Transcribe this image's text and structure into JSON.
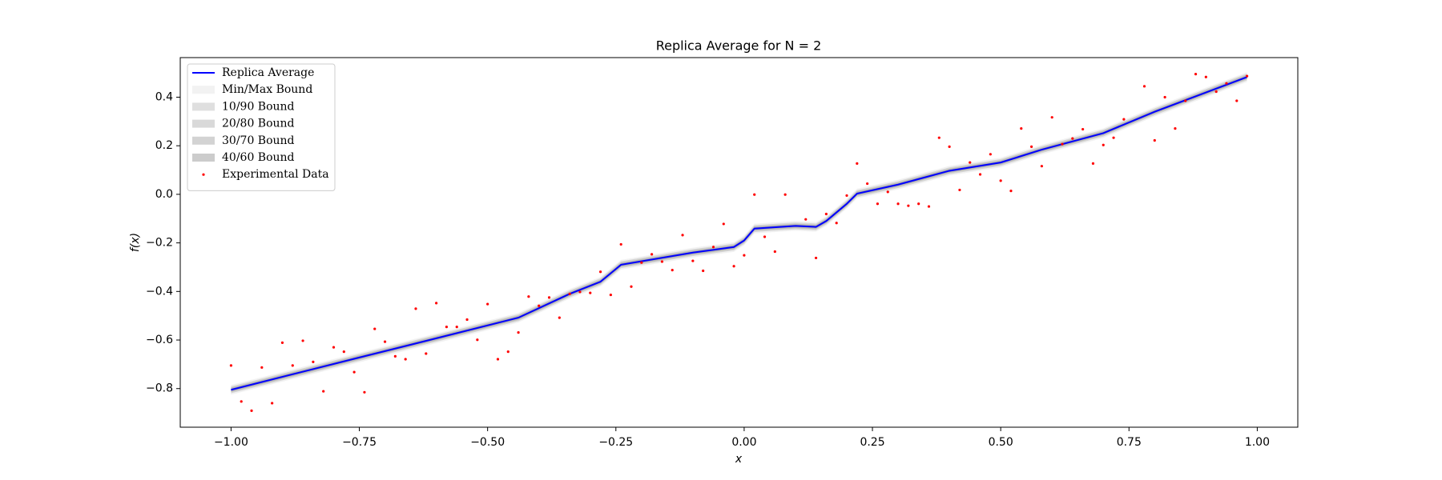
{
  "chart_data": {
    "type": "line",
    "title": "Replica Average for N = 2",
    "x_label": "x",
    "y_label": "f(x)",
    "xlim": [
      -1.099,
      1.079
    ],
    "ylim": [
      -0.959,
      0.563
    ],
    "xticks": [
      {
        "value": -1,
        "label": "−1.00"
      },
      {
        "value": -0.75,
        "label": "−0.75"
      },
      {
        "value": -0.5,
        "label": "−0.50"
      },
      {
        "value": -0.25,
        "label": "−0.25"
      },
      {
        "value": 0,
        "label": "0.00"
      },
      {
        "value": 0.25,
        "label": "0.25"
      },
      {
        "value": 0.5,
        "label": "0.50"
      },
      {
        "value": 0.75,
        "label": "0.75"
      },
      {
        "value": 1,
        "label": "1.00"
      }
    ],
    "yticks": [
      {
        "value": -0.8,
        "label": "−0.8"
      },
      {
        "value": -0.6,
        "label": "−0.6"
      },
      {
        "value": -0.4,
        "label": "−0.4"
      },
      {
        "value": -0.2,
        "label": "−0.2"
      },
      {
        "value": 0,
        "label": "0.0"
      },
      0.2,
      0.4
    ],
    "legend": "upper left",
    "series": [
      {
        "name": "Replica Average",
        "type": "line",
        "color": "#0000ff",
        "x": [
          -1,
          -0.88,
          -0.75,
          -0.6,
          -0.44,
          -0.34,
          -0.28,
          -0.24,
          -0.1,
          -0.02,
          0,
          0.02,
          0.1,
          0.14,
          0.16,
          0.2,
          0.22,
          0.3,
          0.4,
          0.5,
          0.58,
          0.7,
          0.8,
          0.98
        ],
        "values": [
          -0.805,
          -0.741,
          -0.672,
          -0.593,
          -0.508,
          -0.41,
          -0.36,
          -0.29,
          -0.24,
          -0.217,
          -0.19,
          -0.141,
          -0.13,
          -0.134,
          -0.11,
          -0.039,
          0.003,
          0.04,
          0.097,
          0.131,
          0.184,
          0.252,
          0.34,
          0.483
        ]
      },
      {
        "name": "Min/Max Bound",
        "type": "band",
        "color": "#808080",
        "opacity": 0.1,
        "x": [
          -1,
          -0.88,
          -0.75,
          -0.6,
          -0.44,
          -0.34,
          -0.28,
          -0.24,
          -0.1,
          -0.02,
          0,
          0.02,
          0.1,
          0.14,
          0.16,
          0.2,
          0.22,
          0.3,
          0.4,
          0.5,
          0.58,
          0.7,
          0.8,
          0.98
        ],
        "lower": [
          -0.825,
          -0.761,
          -0.692,
          -0.613,
          -0.528,
          -0.43,
          -0.38,
          -0.31,
          -0.26,
          -0.237,
          -0.21,
          -0.161,
          -0.15,
          -0.154,
          -0.13,
          -0.059,
          -0.017,
          0.02,
          0.077,
          0.111,
          0.164,
          0.232,
          0.32,
          0.463
        ],
        "upper": [
          -0.785,
          -0.721,
          -0.652,
          -0.573,
          -0.488,
          -0.39,
          -0.34,
          -0.27,
          -0.22,
          -0.197,
          -0.17,
          -0.121,
          -0.11,
          -0.114,
          -0.09,
          -0.019,
          0.023,
          0.06,
          0.117,
          0.151,
          0.204,
          0.272,
          0.36,
          0.503
        ]
      },
      {
        "name": "10/90 Bound",
        "type": "band",
        "color": "#808080",
        "opacity": 0.25,
        "x": [
          -1,
          -0.88,
          -0.75,
          -0.6,
          -0.44,
          -0.34,
          -0.28,
          -0.24,
          -0.1,
          -0.02,
          0,
          0.02,
          0.1,
          0.14,
          0.16,
          0.2,
          0.22,
          0.3,
          0.4,
          0.5,
          0.58,
          0.7,
          0.8,
          0.98
        ],
        "lower": [
          -0.819,
          -0.755,
          -0.686,
          -0.607,
          -0.522,
          -0.424,
          -0.374,
          -0.304,
          -0.254,
          -0.231,
          -0.204,
          -0.155,
          -0.144,
          -0.148,
          -0.124,
          -0.053,
          -0.011,
          0.026,
          0.083,
          0.117,
          0.17,
          0.238,
          0.326,
          0.469
        ],
        "upper": [
          -0.791,
          -0.727,
          -0.658,
          -0.579,
          -0.494,
          -0.396,
          -0.346,
          -0.276,
          -0.226,
          -0.203,
          -0.176,
          -0.127,
          -0.116,
          -0.12,
          -0.096,
          -0.025,
          0.017,
          0.054,
          0.111,
          0.145,
          0.198,
          0.266,
          0.354,
          0.497
        ]
      },
      {
        "name": "20/80 Bound",
        "type": "band",
        "color": "#808080",
        "opacity": 0.3,
        "x": [
          -1,
          -0.88,
          -0.75,
          -0.6,
          -0.44,
          -0.34,
          -0.28,
          -0.24,
          -0.1,
          -0.02,
          0,
          0.02,
          0.1,
          0.14,
          0.16,
          0.2,
          0.22,
          0.3,
          0.4,
          0.5,
          0.58,
          0.7,
          0.8,
          0.98
        ],
        "lower": [
          -0.814,
          -0.75,
          -0.681,
          -0.602,
          -0.517,
          -0.419,
          -0.369,
          -0.299,
          -0.249,
          -0.226,
          -0.199,
          -0.15,
          -0.139,
          -0.143,
          -0.119,
          -0.048,
          -0.006,
          0.031,
          0.088,
          0.122,
          0.175,
          0.243,
          0.331,
          0.474
        ],
        "upper": [
          -0.796,
          -0.732,
          -0.663,
          -0.584,
          -0.499,
          -0.401,
          -0.351,
          -0.281,
          -0.231,
          -0.208,
          -0.181,
          -0.132,
          -0.121,
          -0.125,
          -0.101,
          -0.03,
          0.012,
          0.049,
          0.106,
          0.14,
          0.193,
          0.261,
          0.349,
          0.492
        ]
      },
      {
        "name": "30/70 Bound",
        "type": "band",
        "color": "#808080",
        "opacity": 0.35,
        "x": [
          -1,
          -0.88,
          -0.75,
          -0.6,
          -0.44,
          -0.34,
          -0.28,
          -0.24,
          -0.1,
          -0.02,
          0,
          0.02,
          0.1,
          0.14,
          0.16,
          0.2,
          0.22,
          0.3,
          0.4,
          0.5,
          0.58,
          0.7,
          0.8,
          0.98
        ],
        "lower": [
          -0.81,
          -0.746,
          -0.677,
          -0.598,
          -0.513,
          -0.415,
          -0.365,
          -0.295,
          -0.245,
          -0.222,
          -0.195,
          -0.146,
          -0.135,
          -0.139,
          -0.115,
          -0.044,
          -0.002,
          0.035,
          0.092,
          0.126,
          0.179,
          0.247,
          0.335,
          0.478
        ],
        "upper": [
          -0.8,
          -0.736,
          -0.667,
          -0.588,
          -0.503,
          -0.405,
          -0.355,
          -0.285,
          -0.235,
          -0.212,
          -0.185,
          -0.136,
          -0.125,
          -0.129,
          -0.105,
          -0.034,
          0.008,
          0.045,
          0.102,
          0.136,
          0.189,
          0.257,
          0.345,
          0.488
        ]
      },
      {
        "name": "40/60 Bound",
        "type": "band",
        "color": "#808080",
        "opacity": 0.4,
        "x": [
          -1,
          -0.88,
          -0.75,
          -0.6,
          -0.44,
          -0.34,
          -0.28,
          -0.24,
          -0.1,
          -0.02,
          0,
          0.02,
          0.1,
          0.14,
          0.16,
          0.2,
          0.22,
          0.3,
          0.4,
          0.5,
          0.58,
          0.7,
          0.8,
          0.98
        ],
        "lower": [
          -0.807,
          -0.743,
          -0.674,
          -0.595,
          -0.51,
          -0.412,
          -0.362,
          -0.292,
          -0.242,
          -0.219,
          -0.192,
          -0.143,
          -0.132,
          -0.136,
          -0.112,
          -0.041,
          0.001,
          0.038,
          0.095,
          0.129,
          0.182,
          0.25,
          0.338,
          0.481
        ],
        "upper": [
          -0.803,
          -0.739,
          -0.67,
          -0.591,
          -0.506,
          -0.408,
          -0.358,
          -0.288,
          -0.238,
          -0.215,
          -0.188,
          -0.139,
          -0.128,
          -0.132,
          -0.108,
          -0.037,
          0.005,
          0.042,
          0.099,
          0.133,
          0.186,
          0.254,
          0.342,
          0.485
        ]
      },
      {
        "name": "Experimental Data",
        "type": "scatter",
        "color": "#ff0000",
        "x": [
          -1,
          -0.98,
          -0.96,
          -0.94,
          -0.92,
          -0.9,
          -0.88,
          -0.86,
          -0.84,
          -0.82,
          -0.8,
          -0.78,
          -0.76,
          -0.74,
          -0.72,
          -0.7,
          -0.68,
          -0.66,
          -0.64,
          -0.62,
          -0.6,
          -0.58,
          -0.56,
          -0.54,
          -0.52,
          -0.5,
          -0.48,
          -0.46,
          -0.44,
          -0.42,
          -0.4,
          -0.38,
          -0.36,
          -0.34,
          -0.32,
          -0.3,
          -0.28,
          -0.26,
          -0.24,
          -0.22,
          -0.2,
          -0.18,
          -0.16,
          -0.14,
          -0.12,
          -0.1,
          -0.08,
          -0.06,
          -0.04,
          -0.02,
          0,
          0.02,
          0.04,
          0.06,
          0.08,
          0.12,
          0.14,
          0.16,
          0.18,
          0.2,
          0.22,
          0.24,
          0.26,
          0.28,
          0.3,
          0.32,
          0.34,
          0.36,
          0.38,
          0.4,
          0.42,
          0.44,
          0.46,
          0.48,
          0.5,
          0.52,
          0.54,
          0.56,
          0.58,
          0.6,
          0.62,
          0.64,
          0.66,
          0.68,
          0.7,
          0.72,
          0.74,
          0.78,
          0.8,
          0.82,
          0.84,
          0.86,
          0.88,
          0.9,
          0.92,
          0.94,
          0.96,
          0.98
        ],
        "values": [
          -0.705,
          -0.853,
          -0.891,
          -0.713,
          -0.86,
          -0.611,
          -0.705,
          -0.603,
          -0.69,
          -0.811,
          -0.63,
          -0.648,
          -0.732,
          -0.815,
          -0.554,
          -0.607,
          -0.667,
          -0.679,
          -0.471,
          -0.656,
          -0.448,
          -0.546,
          -0.546,
          -0.516,
          -0.599,
          -0.452,
          -0.679,
          -0.648,
          -0.569,
          -0.421,
          -0.459,
          -0.425,
          -0.508,
          -0.41,
          -0.402,
          -0.406,
          -0.319,
          -0.414,
          -0.206,
          -0.38,
          -0.281,
          -0.247,
          -0.277,
          -0.312,
          -0.168,
          -0.274,
          -0.315,
          -0.217,
          -0.122,
          -0.296,
          -0.251,
          -0.001,
          -0.175,
          -0.236,
          -0.001,
          -0.103,
          -0.262,
          -0.081,
          -0.118,
          -0.005,
          0.127,
          0.044,
          -0.039,
          0.01,
          -0.039,
          -0.047,
          -0.039,
          -0.05,
          0.233,
          0.196,
          0.018,
          0.131,
          0.082,
          0.165,
          0.056,
          0.014,
          0.271,
          0.196,
          0.116,
          0.317,
          0.207,
          0.23,
          0.268,
          0.127,
          0.203,
          0.233,
          0.309,
          0.445,
          0.222,
          0.4,
          0.271,
          0.385,
          0.495,
          0.483,
          0.423,
          0.457,
          0.385,
          0.487
        ]
      }
    ]
  }
}
